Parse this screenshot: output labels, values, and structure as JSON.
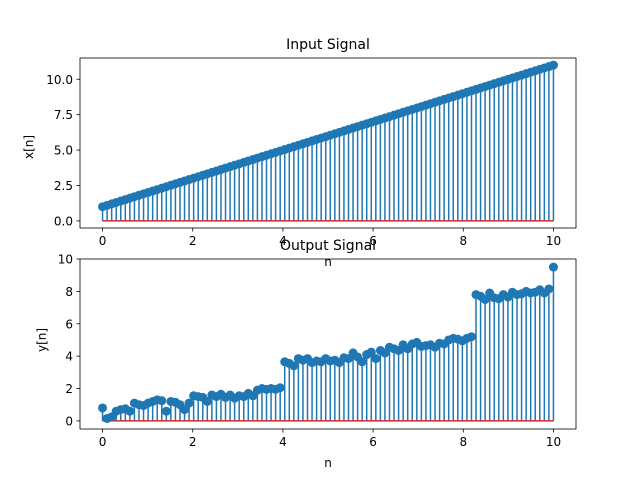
{
  "colors": {
    "stem": "#1f77b4",
    "baseline": "#d62728"
  },
  "chart_data": [
    {
      "type": "stem",
      "title": "Input Signal",
      "xlabel": "n",
      "ylabel": "x[n]",
      "xlim": [
        -0.5,
        10.5
      ],
      "ylim": [
        -0.5,
        11.5
      ],
      "xticks": [
        0,
        2,
        4,
        6,
        8,
        10
      ],
      "yticks": [
        "0.0",
        "2.5",
        "5.0",
        "7.5",
        "10.0"
      ],
      "x_range": [
        0,
        10
      ],
      "num_points": 100,
      "series": [
        {
          "formula": "x[n] = n + 1",
          "y_start": 1.0,
          "y_end": 11.0
        }
      ]
    },
    {
      "type": "stem",
      "title": "Output Signal",
      "xlabel": "n",
      "ylabel": "y[n]",
      "xlim": [
        -0.5,
        10.5
      ],
      "ylim": [
        -0.5,
        10
      ],
      "xticks": [
        0,
        2,
        4,
        6,
        8,
        10
      ],
      "yticks": [
        "0",
        "2",
        "4",
        "6",
        "8",
        "10"
      ],
      "x_range": [
        0,
        10
      ],
      "num_points": 100,
      "series": [
        {
          "values": [
            0.8,
            0.15,
            0.25,
            0.6,
            0.7,
            0.75,
            0.6,
            1.1,
            1.0,
            0.95,
            1.1,
            1.2,
            1.3,
            1.25,
            0.6,
            1.2,
            1.15,
            1.0,
            0.7,
            1.1,
            1.55,
            1.5,
            1.45,
            1.2,
            1.6,
            1.5,
            1.65,
            1.45,
            1.6,
            1.4,
            1.55,
            1.5,
            1.7,
            1.55,
            1.9,
            2.0,
            1.95,
            2.0,
            1.95,
            2.05,
            3.65,
            3.55,
            3.4,
            3.85,
            3.75,
            3.85,
            3.6,
            3.7,
            3.65,
            3.85,
            3.7,
            3.75,
            3.6,
            3.9,
            3.85,
            4.2,
            3.95,
            3.65,
            4.1,
            4.25,
            3.85,
            4.35,
            4.2,
            4.55,
            4.45,
            4.35,
            4.7,
            4.45,
            4.75,
            4.85,
            4.6,
            4.65,
            4.7,
            4.55,
            4.8,
            4.75,
            5.0,
            5.1,
            5.05,
            4.95,
            5.1,
            5.2,
            7.8,
            7.7,
            7.5,
            7.9,
            7.6,
            7.55,
            7.8,
            7.65,
            7.95,
            7.8,
            7.85,
            8.0,
            7.9,
            7.95,
            8.1,
            7.9,
            8.15,
            9.5
          ]
        }
      ]
    }
  ]
}
